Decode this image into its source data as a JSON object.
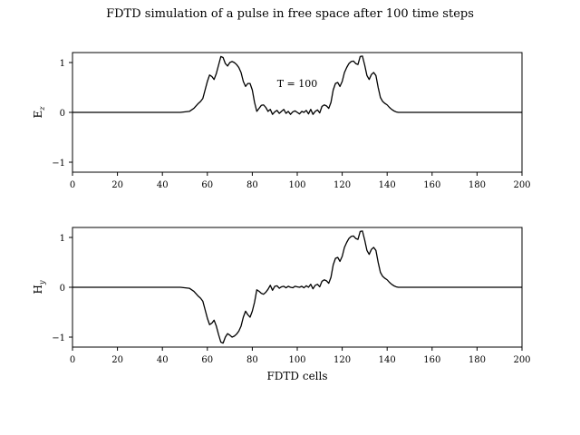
{
  "chart_data": [
    {
      "type": "line",
      "title": "FDTD simulation of a pulse in free space after 100 time steps",
      "xlabel": "",
      "ylabel": "E_z",
      "xlim": [
        0,
        200
      ],
      "ylim": [
        -1.2,
        1.2
      ],
      "xticks": [
        "0",
        "20",
        "40",
        "60",
        "80",
        "100",
        "120",
        "140",
        "160",
        "180",
        "200"
      ],
      "yticks": [
        "−1",
        "0",
        "1"
      ],
      "annotation": "T = 100",
      "grid": false,
      "series": [
        {
          "x": [
            0,
            48,
            52,
            54,
            56,
            57,
            58,
            59,
            60,
            61,
            62,
            63,
            64,
            65,
            66,
            67,
            68,
            69,
            70,
            71,
            72,
            73,
            74,
            75,
            76,
            77,
            78,
            79,
            80,
            81,
            82,
            83,
            84,
            85,
            86,
            87,
            88,
            89,
            90,
            91,
            92,
            93,
            94,
            95,
            96,
            97,
            98,
            99,
            100,
            101,
            102,
            103,
            104,
            105,
            106,
            107,
            108,
            109,
            110,
            111,
            112,
            113,
            114,
            115,
            116,
            117,
            118,
            119,
            120,
            121,
            122,
            123,
            124,
            125,
            126,
            127,
            128,
            129,
            130,
            131,
            132,
            133,
            134,
            135,
            136,
            137,
            138,
            139,
            140,
            141,
            142,
            143,
            144,
            145,
            146,
            148,
            150,
            152,
            200
          ],
          "y": [
            0,
            0,
            0.02,
            0.08,
            0.18,
            0.22,
            0.28,
            0.45,
            0.62,
            0.75,
            0.72,
            0.66,
            0.78,
            0.95,
            1.12,
            1.1,
            0.98,
            0.93,
            1.0,
            1.02,
            1.0,
            0.96,
            0.9,
            0.8,
            0.62,
            0.52,
            0.58,
            0.58,
            0.45,
            0.2,
            0.02,
            0.08,
            0.14,
            0.15,
            0.1,
            0.02,
            0.06,
            -0.04,
            0.01,
            0.04,
            -0.02,
            0.02,
            0.06,
            -0.02,
            0.02,
            -0.04,
            0.01,
            0.03,
            0.0,
            -0.03,
            0.02,
            0.0,
            0.04,
            -0.03,
            0.06,
            -0.04,
            0.02,
            0.05,
            -0.01,
            0.12,
            0.15,
            0.13,
            0.08,
            0.2,
            0.45,
            0.58,
            0.6,
            0.52,
            0.62,
            0.8,
            0.9,
            0.98,
            1.02,
            1.03,
            0.98,
            0.96,
            1.12,
            1.13,
            0.95,
            0.74,
            0.66,
            0.76,
            0.8,
            0.74,
            0.5,
            0.3,
            0.22,
            0.18,
            0.15,
            0.1,
            0.06,
            0.03,
            0.01,
            0.0,
            0.0,
            0.0,
            0.0,
            0.0,
            0.0
          ]
        }
      ]
    },
    {
      "type": "line",
      "title": "",
      "xlabel": "FDTD cells",
      "ylabel": "H_y",
      "xlim": [
        0,
        200
      ],
      "ylim": [
        -1.2,
        1.2
      ],
      "xticks": [
        "0",
        "20",
        "40",
        "60",
        "80",
        "100",
        "120",
        "140",
        "160",
        "180",
        "200"
      ],
      "yticks": [
        "−1",
        "0",
        "1"
      ],
      "grid": false,
      "series": [
        {
          "x": [
            0,
            48,
            52,
            54,
            56,
            57,
            58,
            59,
            60,
            61,
            62,
            63,
            64,
            65,
            66,
            67,
            68,
            69,
            70,
            71,
            72,
            73,
            74,
            75,
            76,
            77,
            78,
            79,
            80,
            81,
            82,
            83,
            84,
            85,
            86,
            87,
            88,
            89,
            90,
            91,
            92,
            93,
            94,
            95,
            96,
            97,
            98,
            99,
            100,
            101,
            102,
            103,
            104,
            105,
            106,
            107,
            108,
            109,
            110,
            111,
            112,
            113,
            114,
            115,
            116,
            117,
            118,
            119,
            120,
            121,
            122,
            123,
            124,
            125,
            126,
            127,
            128,
            129,
            130,
            131,
            132,
            133,
            134,
            135,
            136,
            137,
            138,
            139,
            140,
            141,
            142,
            143,
            144,
            145,
            146,
            148,
            150,
            152,
            200
          ],
          "y": [
            0,
            0,
            -0.02,
            -0.08,
            -0.18,
            -0.22,
            -0.28,
            -0.45,
            -0.62,
            -0.75,
            -0.72,
            -0.66,
            -0.78,
            -0.95,
            -1.1,
            -1.12,
            -1.0,
            -0.93,
            -0.96,
            -1.0,
            -0.98,
            -0.94,
            -0.88,
            -0.78,
            -0.6,
            -0.48,
            -0.55,
            -0.6,
            -0.48,
            -0.3,
            -0.05,
            -0.08,
            -0.12,
            -0.14,
            -0.1,
            -0.04,
            0.04,
            -0.06,
            0.02,
            0.03,
            -0.02,
            0.01,
            0.02,
            -0.01,
            0.02,
            0.0,
            -0.01,
            0.02,
            0.01,
            0.0,
            0.02,
            -0.01,
            0.03,
            0.0,
            0.06,
            -0.03,
            0.04,
            0.06,
            0.01,
            0.12,
            0.15,
            0.13,
            0.08,
            0.2,
            0.45,
            0.58,
            0.6,
            0.52,
            0.62,
            0.8,
            0.9,
            0.98,
            1.02,
            1.03,
            0.98,
            0.96,
            1.12,
            1.13,
            0.95,
            0.74,
            0.66,
            0.76,
            0.8,
            0.74,
            0.5,
            0.3,
            0.22,
            0.18,
            0.15,
            0.1,
            0.06,
            0.03,
            0.01,
            0.0,
            0.0,
            0.0,
            0.0,
            0.0,
            0.0
          ]
        }
      ]
    }
  ]
}
